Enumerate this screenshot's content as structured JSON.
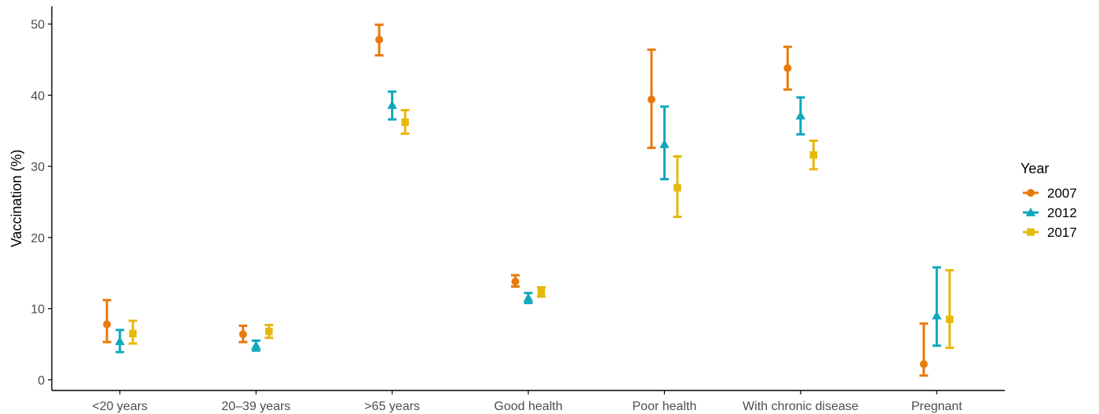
{
  "chart_data": {
    "type": "errorbar",
    "ylabel": "Vaccination (%)",
    "xlabel": "",
    "ylim": [
      -1.5,
      52.5
    ],
    "yticks": [
      0,
      10,
      20,
      30,
      40,
      50
    ],
    "grid": false,
    "legend": {
      "title": "Year",
      "placement": "right"
    },
    "categories": [
      "<20 years",
      "20–39 years",
      ">65 years",
      "Good health",
      "Poor health",
      "With chronic disease",
      "Pregnant"
    ],
    "series": [
      {
        "name": "2007",
        "color": "#E87A0C",
        "marker": "circle",
        "values": [
          7.8,
          6.4,
          47.8,
          13.8,
          39.4,
          43.8,
          2.2
        ],
        "lower": [
          5.3,
          5.3,
          45.6,
          13.1,
          32.6,
          40.8,
          0.6
        ],
        "upper": [
          11.2,
          7.6,
          49.9,
          14.7,
          46.4,
          46.8,
          7.9
        ]
      },
      {
        "name": "2012",
        "color": "#0FA8BA",
        "marker": "triangle",
        "values": [
          5.4,
          4.8,
          38.6,
          11.5,
          33.1,
          37.1,
          9.0
        ],
        "lower": [
          3.9,
          4.1,
          36.6,
          10.8,
          28.2,
          34.5,
          4.8
        ],
        "upper": [
          7.0,
          5.5,
          40.5,
          12.2,
          38.4,
          39.7,
          15.8
        ]
      },
      {
        "name": "2017",
        "color": "#E6B80A",
        "marker": "square",
        "values": [
          6.5,
          6.8,
          36.2,
          12.3,
          27.0,
          31.6,
          8.5
        ],
        "lower": [
          5.1,
          5.9,
          34.6,
          11.7,
          22.9,
          29.6,
          4.5
        ],
        "upper": [
          8.3,
          7.7,
          37.9,
          13.0,
          31.4,
          33.6,
          15.4
        ]
      }
    ]
  }
}
